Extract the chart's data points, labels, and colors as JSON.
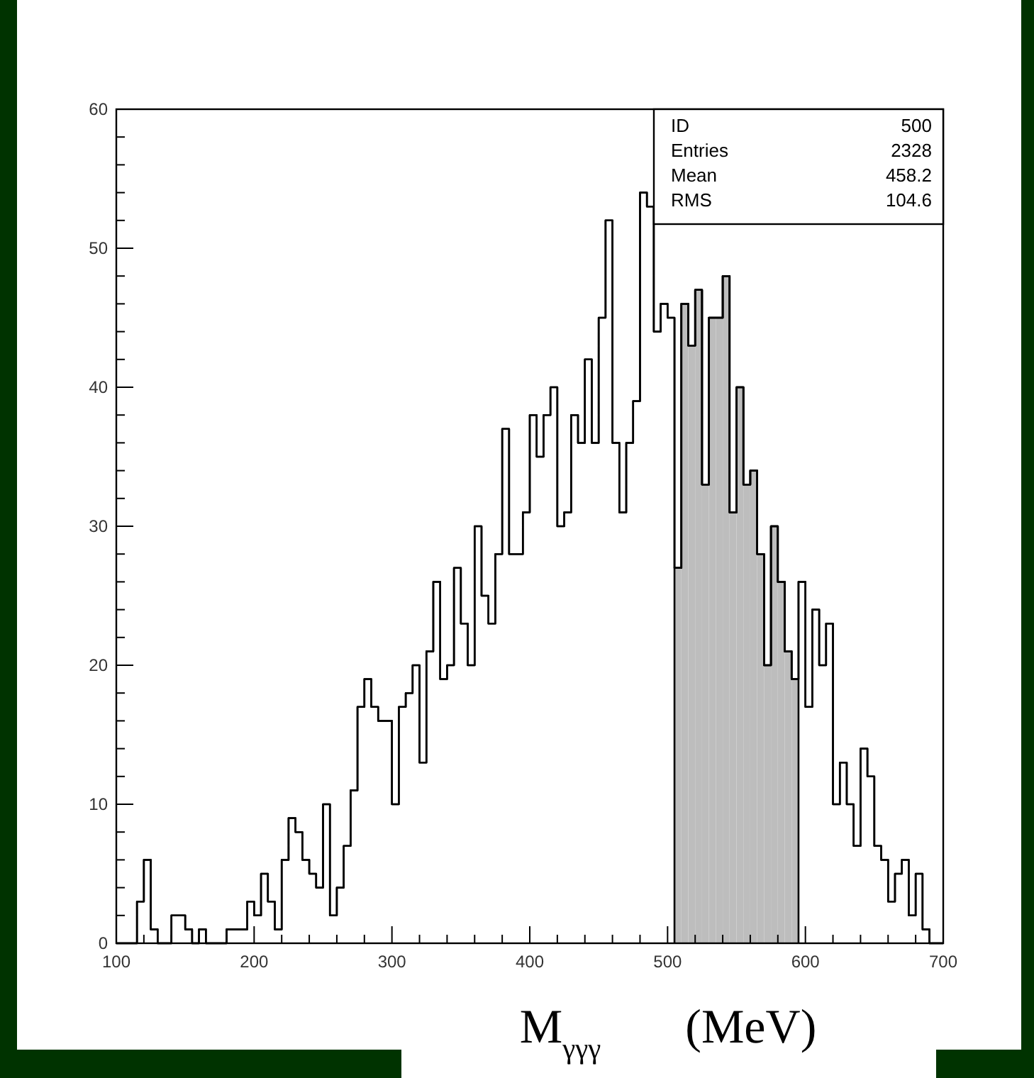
{
  "chart_data": {
    "type": "histogram",
    "xlabel": "M$_{γγγ}$      (MeV)",
    "bins": [
      100,
      105,
      110,
      115,
      120,
      125,
      130,
      135,
      140,
      145,
      150,
      155,
      160,
      165,
      170,
      175,
      180,
      185,
      190,
      195,
      200,
      205,
      210,
      215,
      220,
      225,
      230,
      235,
      240,
      245,
      250,
      255,
      260,
      265,
      270,
      275,
      280,
      285,
      290,
      295,
      300,
      305,
      310,
      315,
      320,
      325,
      330,
      335,
      340,
      345,
      350,
      355,
      360,
      365,
      370,
      375,
      380,
      385,
      390,
      395,
      400,
      405,
      410,
      415,
      420,
      425,
      430,
      435,
      440,
      445,
      450,
      455,
      460,
      465,
      470,
      475,
      480,
      485,
      490,
      495,
      500,
      505,
      510,
      515,
      520,
      525,
      530,
      535,
      540,
      545,
      550,
      555,
      560,
      565,
      570,
      575,
      580,
      585,
      590,
      595,
      600,
      605,
      610,
      615,
      620,
      625,
      630,
      635,
      640,
      645,
      650,
      655,
      660,
      665,
      670,
      675,
      680,
      685,
      690,
      695,
      700
    ],
    "series": [
      {
        "color": "#000000",
        "values": [
          0,
          0,
          0,
          3,
          6,
          1,
          0,
          0,
          2,
          2,
          1,
          0,
          1,
          0,
          0,
          0,
          1,
          1,
          1,
          3,
          2,
          5,
          3,
          1,
          6,
          9,
          8,
          6,
          5,
          4,
          10,
          2,
          4,
          7,
          11,
          17,
          19,
          17,
          16,
          16,
          10,
          17,
          18,
          20,
          13,
          21,
          26,
          19,
          20,
          27,
          23,
          20,
          30,
          25,
          23,
          28,
          37,
          28,
          28,
          31,
          38,
          35,
          38,
          40,
          30,
          31,
          38,
          36,
          42,
          36,
          45,
          52,
          36,
          31,
          36,
          39,
          54,
          53,
          44,
          46,
          45,
          27,
          46,
          43,
          47,
          33,
          45,
          45,
          48,
          31,
          40,
          33,
          34,
          28,
          20,
          30,
          26,
          21,
          19,
          26,
          17,
          24,
          20,
          23,
          10,
          13,
          10,
          7,
          14,
          12,
          7,
          6,
          3,
          5,
          6,
          2,
          5,
          1,
          0,
          0
        ]
      },
      {
        "color": "#bdbdbd",
        "bins": [
          505,
          510,
          515,
          520,
          525,
          530,
          535,
          540,
          545,
          550,
          555,
          560,
          565,
          570,
          575,
          580,
          585,
          590,
          595
        ],
        "values": [
          27,
          46,
          43,
          47,
          33,
          45,
          45,
          48,
          31,
          40,
          33,
          34,
          28,
          20,
          30,
          26,
          21,
          19
        ]
      }
    ],
    "xlim": [
      100,
      700
    ],
    "xticks": [
      100,
      {
        "value": 120,
        "label": null
      },
      {
        "value": 140,
        "label": null
      },
      {
        "value": 160,
        "label": null
      },
      {
        "value": 180,
        "label": null
      },
      200,
      {
        "value": 220,
        "label": null
      },
      {
        "value": 240,
        "label": null
      },
      {
        "value": 260,
        "label": null
      },
      {
        "value": 280,
        "label": null
      },
      300,
      {
        "value": 320,
        "label": null
      },
      {
        "value": 340,
        "label": null
      },
      {
        "value": 360,
        "label": null
      },
      {
        "value": 380,
        "label": null
      },
      400,
      {
        "value": 420,
        "label": null
      },
      {
        "value": 440,
        "label": null
      },
      {
        "value": 460,
        "label": null
      },
      {
        "value": 480,
        "label": null
      },
      500,
      {
        "value": 520,
        "label": null
      },
      {
        "value": 540,
        "label": null
      },
      {
        "value": 560,
        "label": null
      },
      {
        "value": 580,
        "label": null
      },
      600,
      {
        "value": 620,
        "label": null
      },
      {
        "value": 640,
        "label": null
      },
      {
        "value": 660,
        "label": null
      },
      {
        "value": 680,
        "label": null
      },
      700
    ],
    "ylim": [
      0,
      60
    ],
    "yticks": [
      0,
      {
        "value": 2,
        "label": null
      },
      {
        "value": 4,
        "label": null
      },
      {
        "value": 6,
        "label": null
      },
      {
        "value": 8,
        "label": null
      },
      10,
      {
        "value": 12,
        "label": null
      },
      {
        "value": 14,
        "label": null
      },
      {
        "value": 16,
        "label": null
      },
      {
        "value": 18,
        "label": null
      },
      20,
      {
        "value": 22,
        "label": null
      },
      {
        "value": 24,
        "label": null
      },
      {
        "value": 26,
        "label": null
      },
      {
        "value": 28,
        "label": null
      },
      30,
      {
        "value": 32,
        "label": null
      },
      {
        "value": 34,
        "label": null
      },
      {
        "value": 36,
        "label": null
      },
      {
        "value": 38,
        "label": null
      },
      40,
      {
        "value": 42,
        "label": null
      },
      {
        "value": 44,
        "label": null
      },
      {
        "value": 46,
        "label": null
      },
      {
        "value": 48,
        "label": null
      },
      50,
      {
        "value": 52,
        "label": null
      },
      {
        "value": 54,
        "label": null
      },
      {
        "value": 56,
        "label": null
      },
      {
        "value": 58,
        "label": null
      },
      60
    ],
    "annotations": [
      "ID",
      "500",
      "Entries",
      "2328",
      "Mean",
      "458.2",
      "RMS",
      "104.6"
    ]
  }
}
